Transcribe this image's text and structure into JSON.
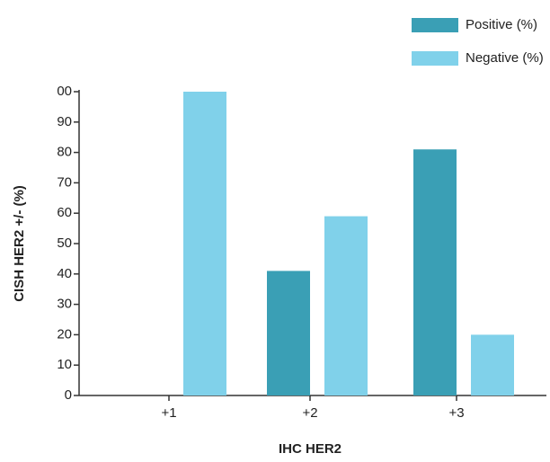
{
  "chart_data": {
    "type": "bar",
    "xlabel": "IHC HER2",
    "ylabel": "CISH HER2 +/- (%)",
    "categories": [
      "+1",
      "+2",
      "+3"
    ],
    "series": [
      {
        "name": "Positive (%)",
        "color": "#3a9fb5",
        "values": [
          0,
          41,
          81
        ]
      },
      {
        "name": "Negative (%)",
        "color": "#80d1ea",
        "values": [
          100,
          59,
          20
        ]
      }
    ],
    "ylim": [
      0,
      100
    ],
    "yticks": [
      0,
      10,
      20,
      30,
      40,
      50,
      60,
      70,
      80,
      90,
      {
        "value": 100,
        "label": "00"
      }
    ],
    "legend": "top-right"
  }
}
